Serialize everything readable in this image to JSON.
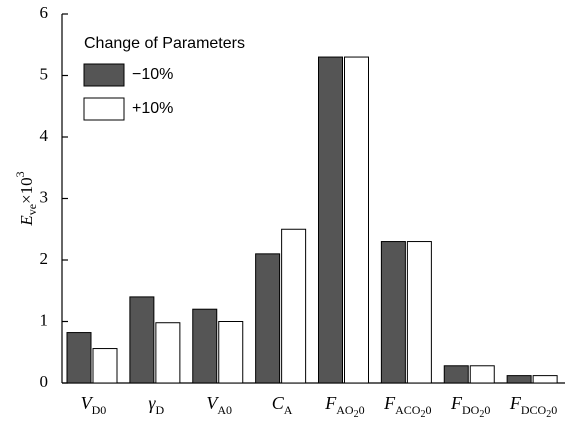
{
  "chart_data": {
    "type": "bar",
    "legend_title": "Change of Parameters",
    "y_label": [
      "E",
      "ve",
      "×10",
      "3"
    ],
    "categories": [
      [
        "V",
        "D0"
      ],
      [
        "γ",
        "D"
      ],
      [
        "V",
        "A0"
      ],
      [
        "C",
        "A"
      ],
      [
        "F",
        "AO",
        "2",
        "0"
      ],
      [
        "F",
        "ACO",
        "2",
        "0"
      ],
      [
        "F",
        "DO",
        "2",
        "0"
      ],
      [
        "F",
        "DCO",
        "2",
        "0"
      ]
    ],
    "series": [
      {
        "name": "−10%",
        "color": "#555555",
        "values": [
          0.82,
          1.4,
          1.2,
          2.1,
          5.3,
          2.3,
          0.28,
          0.12
        ]
      },
      {
        "name": "+10%",
        "color": "#ffffff",
        "values": [
          0.56,
          0.98,
          1.0,
          2.5,
          5.3,
          2.3,
          0.28,
          0.12
        ]
      }
    ],
    "ylim": [
      0,
      6
    ],
    "yticks": [
      0,
      1,
      2,
      3,
      4,
      5,
      6
    ],
    "grid": false,
    "legend": "upper left"
  }
}
